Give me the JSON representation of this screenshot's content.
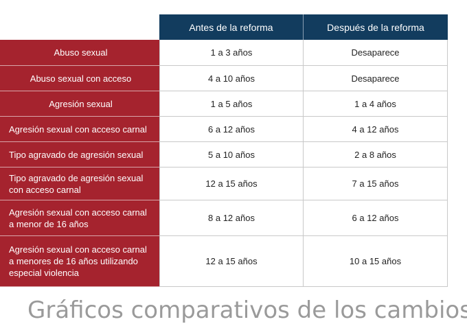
{
  "table": {
    "headers": [
      "Antes de la reforma",
      "Después de la reforma"
    ],
    "rows": [
      {
        "label": "Abuso sexual",
        "before": "1 a 3 años",
        "after": "Desaparece"
      },
      {
        "label": "Abuso sexual con acceso",
        "before": "4 a 10 años",
        "after": "Desaparece"
      },
      {
        "label": "Agresión sexual",
        "before": "1 a 5 años",
        "after": "1 a 4 años"
      },
      {
        "label": "Agresión sexual con acceso carnal",
        "before": "6 a 12 años",
        "after": "4 a 12 años"
      },
      {
        "label": "Tipo agravado de agresión sexual",
        "before": "5 a 10 años",
        "after": "2 a 8 años"
      },
      {
        "label": "Tipo agravado de agresión sexual con acceso carnal",
        "before": "12 a 15 años",
        "after": "7 a 15 años"
      },
      {
        "label": "Agresión sexual con acceso carnal a menor de 16 años",
        "before": "8 a 12 años",
        "after": "6 a 12 años"
      },
      {
        "label": "Agresión sexual con acceso carnal a menores de 16 años utilizando especial violencia",
        "before": "12 a 15 años",
        "after": "10 a 15 años"
      }
    ]
  },
  "footer": {
    "partial_heading": "Gráficos comparativos de los cambios"
  },
  "colors": {
    "header_bg": "#123c5e",
    "label_bg": "#a5232e"
  }
}
